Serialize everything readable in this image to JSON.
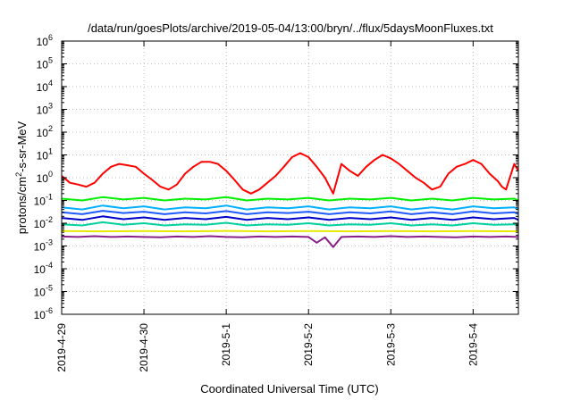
{
  "chart_data": {
    "type": "line",
    "title": "/data/run/goesPlots/archive/2019-05-04/13:00/bryn/../flux/5daysMoonFluxes.txt",
    "xlabel": "Coordinated Universal Time (UTC)",
    "ylabel_parts": [
      "protons/cm",
      "2",
      "-s-sr-MeV"
    ],
    "y_scale": "log",
    "ylim": [
      1e-06,
      1000000.0
    ],
    "x_range_days": [
      0,
      5.55
    ],
    "x_ticks": [
      {
        "label": "2019-4-29",
        "day": 0
      },
      {
        "label": "2019-4-30",
        "day": 1
      },
      {
        "label": "2019-5-1",
        "day": 2
      },
      {
        "label": "2019-5-2",
        "day": 3
      },
      {
        "label": "2019-5-3",
        "day": 4
      },
      {
        "label": "2019-5-4",
        "day": 5
      }
    ],
    "y_ticks": [
      {
        "exp": 6,
        "label_base": "10",
        "label_exp": "6"
      },
      {
        "exp": 5,
        "label_base": "10",
        "label_exp": "5"
      },
      {
        "exp": 4,
        "label_base": "10",
        "label_exp": "4"
      },
      {
        "exp": 3,
        "label_base": "10",
        "label_exp": "3"
      },
      {
        "exp": 2,
        "label_base": "10",
        "label_exp": "2"
      },
      {
        "exp": 1,
        "label_base": "10",
        "label_exp": "1"
      },
      {
        "exp": 0,
        "label_base": "10",
        "label_exp": "0"
      },
      {
        "exp": -1,
        "label_base": "10",
        "label_exp": "-1"
      },
      {
        "exp": -2,
        "label_base": "10",
        "label_exp": "-2"
      },
      {
        "exp": -3,
        "label_base": "10",
        "label_exp": "-3"
      },
      {
        "exp": -4,
        "label_base": "10",
        "label_exp": "-4"
      },
      {
        "exp": -5,
        "label_base": "10",
        "label_exp": "-5"
      },
      {
        "exp": -6,
        "label_base": "10",
        "label_exp": "-6"
      }
    ],
    "grid": true,
    "series": [
      {
        "color": "#ff0000",
        "x": [
          0,
          0.1,
          0.2,
          0.3,
          0.4,
          0.5,
          0.6,
          0.7,
          0.8,
          0.9,
          1.0,
          1.1,
          1.2,
          1.3,
          1.4,
          1.5,
          1.6,
          1.7,
          1.8,
          1.9,
          2.0,
          2.1,
          2.2,
          2.3,
          2.4,
          2.5,
          2.6,
          2.7,
          2.8,
          2.9,
          3.0,
          3.1,
          3.2,
          3.3,
          3.4,
          3.5,
          3.6,
          3.7,
          3.8,
          3.9,
          4.0,
          4.1,
          4.2,
          4.3,
          4.4,
          4.5,
          4.6,
          4.7,
          4.8,
          4.9,
          5.0,
          5.1,
          5.2,
          5.3,
          5.35,
          5.4,
          5.5,
          5.55
        ],
        "values": [
          1.2,
          0.6,
          0.5,
          0.4,
          0.6,
          1.5,
          3,
          4,
          3.5,
          3,
          1.5,
          0.8,
          0.4,
          0.3,
          0.5,
          1.5,
          3,
          5,
          5,
          4,
          2,
          0.8,
          0.3,
          0.2,
          0.3,
          0.6,
          1.2,
          3,
          8,
          12,
          8,
          3,
          1,
          0.2,
          4,
          2,
          1.2,
          3,
          6,
          10,
          7,
          4,
          2,
          1,
          0.6,
          0.3,
          0.4,
          1.5,
          3,
          4,
          6,
          4,
          1.5,
          0.7,
          0.4,
          0.3,
          4,
          2
        ]
      },
      {
        "color": "#00ee00",
        "x": [
          0,
          0.25,
          0.5,
          0.75,
          1.0,
          1.25,
          1.5,
          1.75,
          2.0,
          2.25,
          2.5,
          2.75,
          3.0,
          3.25,
          3.5,
          3.75,
          4.0,
          4.25,
          4.5,
          4.75,
          5.0,
          5.25,
          5.5,
          5.55
        ],
        "values": [
          0.12,
          0.1,
          0.14,
          0.11,
          0.13,
          0.1,
          0.12,
          0.11,
          0.14,
          0.1,
          0.12,
          0.11,
          0.13,
          0.1,
          0.12,
          0.11,
          0.13,
          0.1,
          0.12,
          0.1,
          0.13,
          0.11,
          0.12,
          0.1
        ]
      },
      {
        "color": "#00b0ff",
        "x": [
          0,
          0.25,
          0.5,
          0.75,
          1.0,
          1.25,
          1.5,
          1.75,
          2.0,
          2.25,
          2.5,
          2.75,
          3.0,
          3.25,
          3.5,
          3.75,
          4.0,
          4.25,
          4.5,
          4.75,
          5.0,
          5.25,
          5.5,
          5.55
        ],
        "values": [
          0.05,
          0.04,
          0.06,
          0.045,
          0.055,
          0.04,
          0.05,
          0.045,
          0.06,
          0.04,
          0.05,
          0.045,
          0.055,
          0.04,
          0.05,
          0.045,
          0.055,
          0.04,
          0.05,
          0.04,
          0.055,
          0.045,
          0.05,
          0.04
        ]
      },
      {
        "color": "#1e5aff",
        "x": [
          0,
          0.25,
          0.5,
          0.75,
          1.0,
          1.25,
          1.5,
          1.75,
          2.0,
          2.25,
          2.5,
          2.75,
          3.0,
          3.25,
          3.5,
          3.75,
          4.0,
          4.25,
          4.5,
          4.75,
          5.0,
          5.25,
          5.5,
          5.55
        ],
        "values": [
          0.03,
          0.025,
          0.035,
          0.028,
          0.032,
          0.025,
          0.03,
          0.027,
          0.034,
          0.025,
          0.03,
          0.028,
          0.032,
          0.025,
          0.03,
          0.027,
          0.033,
          0.025,
          0.03,
          0.025,
          0.033,
          0.027,
          0.03,
          0.025
        ]
      },
      {
        "color": "#0000c8",
        "x": [
          0,
          0.25,
          0.5,
          0.75,
          1.0,
          1.25,
          1.5,
          1.75,
          2.0,
          2.25,
          2.5,
          2.75,
          3.0,
          3.25,
          3.5,
          3.75,
          4.0,
          4.25,
          4.5,
          4.75,
          5.0,
          5.25,
          5.5,
          5.55
        ],
        "values": [
          0.017,
          0.014,
          0.02,
          0.015,
          0.018,
          0.014,
          0.017,
          0.015,
          0.019,
          0.014,
          0.017,
          0.015,
          0.018,
          0.014,
          0.017,
          0.015,
          0.018,
          0.014,
          0.017,
          0.014,
          0.018,
          0.015,
          0.017,
          0.014
        ]
      },
      {
        "color": "#00d0a0",
        "x": [
          0,
          0.25,
          0.5,
          0.75,
          1.0,
          1.25,
          1.5,
          1.75,
          2.0,
          2.25,
          2.5,
          2.75,
          3.0,
          3.25,
          3.5,
          3.75,
          4.0,
          4.25,
          4.5,
          4.75,
          5.0,
          5.25,
          5.5,
          5.55
        ],
        "values": [
          0.009,
          0.008,
          0.011,
          0.0085,
          0.01,
          0.008,
          0.009,
          0.0085,
          0.0105,
          0.008,
          0.009,
          0.0085,
          0.01,
          0.008,
          0.009,
          0.0085,
          0.01,
          0.008,
          0.009,
          0.008,
          0.01,
          0.0085,
          0.009,
          0.008
        ]
      },
      {
        "color": "#e8e800",
        "x": [
          0,
          0.5,
          1.0,
          1.5,
          2.0,
          2.5,
          3.0,
          3.5,
          4.0,
          4.5,
          5.0,
          5.55
        ],
        "values": [
          0.0045,
          0.0044,
          0.0045,
          0.0044,
          0.0046,
          0.0044,
          0.0045,
          0.0044,
          0.0045,
          0.0044,
          0.0045,
          0.0044
        ]
      },
      {
        "color": "#8a1f8a",
        "x": [
          0,
          0.2,
          0.4,
          0.6,
          0.8,
          1.0,
          1.2,
          1.4,
          1.6,
          1.8,
          2.0,
          2.2,
          2.4,
          2.6,
          2.8,
          3.0,
          3.1,
          3.2,
          3.3,
          3.4,
          3.6,
          3.8,
          4.0,
          4.2,
          4.4,
          4.6,
          4.8,
          5.0,
          5.2,
          5.4,
          5.55
        ],
        "values": [
          0.0026,
          0.0025,
          0.0027,
          0.0025,
          0.0026,
          0.0025,
          0.0024,
          0.0026,
          0.0025,
          0.0027,
          0.0025,
          0.0024,
          0.0026,
          0.0025,
          0.0026,
          0.0025,
          0.0014,
          0.0024,
          0.0009,
          0.0025,
          0.0026,
          0.0025,
          0.0027,
          0.0025,
          0.0026,
          0.0025,
          0.0024,
          0.0026,
          0.0025,
          0.0026,
          0.0025
        ]
      }
    ]
  }
}
